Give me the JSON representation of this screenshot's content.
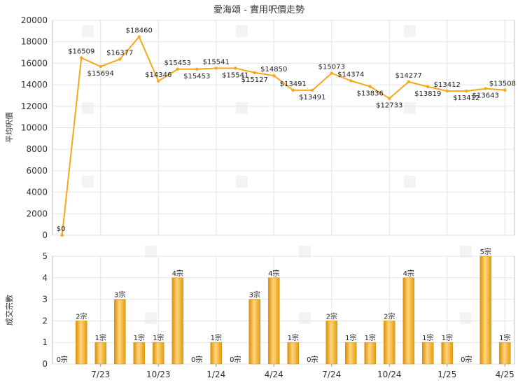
{
  "chart_data": [
    {
      "type": "line",
      "title": "愛海頌 - 實用呎價走勢",
      "ylabel": "平均呎價",
      "ylim": [
        0,
        20000
      ],
      "yticks": [
        "0",
        "2000",
        "4000",
        "6000",
        "8000",
        "10000",
        "12000",
        "14000",
        "16000",
        "18000",
        "20000"
      ],
      "grid": true,
      "color": "#f5a81c",
      "values": [
        0,
        16509,
        15694,
        16377,
        18460,
        14346,
        15453,
        15453,
        15541,
        15541,
        15127,
        14850,
        13491,
        13491,
        15073,
        14374,
        13836,
        12733,
        14277,
        13819,
        13412,
        13412,
        13643,
        13508
      ],
      "labels": [
        "$0",
        "$16509",
        "$15694",
        "$16377",
        "$18460",
        "$14346",
        "$15453",
        "$15453",
        "$15541",
        "$15541",
        "$15127",
        "$14850",
        "$13491",
        "$13491",
        "$15073",
        "$14374",
        "$13836",
        "$12733",
        "$14277",
        "$13819",
        "$13412",
        "$13412",
        "$13643",
        "$13508"
      ]
    },
    {
      "type": "bar",
      "ylabel": "成交宗數",
      "ylim": [
        0,
        5
      ],
      "yticks": [
        "0",
        "1",
        "2",
        "3",
        "4",
        "5"
      ],
      "grid": true,
      "color": "#f5a81c",
      "values": [
        0,
        2,
        1,
        3,
        1,
        1,
        4,
        0,
        1,
        0,
        3,
        4,
        1,
        0,
        2,
        1,
        1,
        2,
        4,
        1,
        1,
        0,
        5,
        1
      ],
      "labels": [
        "0宗",
        "2宗",
        "1宗",
        "3宗",
        "1宗",
        "1宗",
        "4宗",
        "0宗",
        "1宗",
        "0宗",
        "3宗",
        "4宗",
        "1宗",
        "0宗",
        "2宗",
        "1宗",
        "1宗",
        "2宗",
        "4宗",
        "1宗",
        "1宗",
        "0宗",
        "5宗",
        "1宗"
      ],
      "xticks": [
        {
          "label": "7/23",
          "index": 2
        },
        {
          "label": "10/23",
          "index": 5
        },
        {
          "label": "1/24",
          "index": 8
        },
        {
          "label": "4/24",
          "index": 11
        },
        {
          "label": "7/24",
          "index": 14
        },
        {
          "label": "10/24",
          "index": 17
        },
        {
          "label": "1/25",
          "index": 20
        },
        {
          "label": "4/25",
          "index": 23
        }
      ]
    }
  ]
}
